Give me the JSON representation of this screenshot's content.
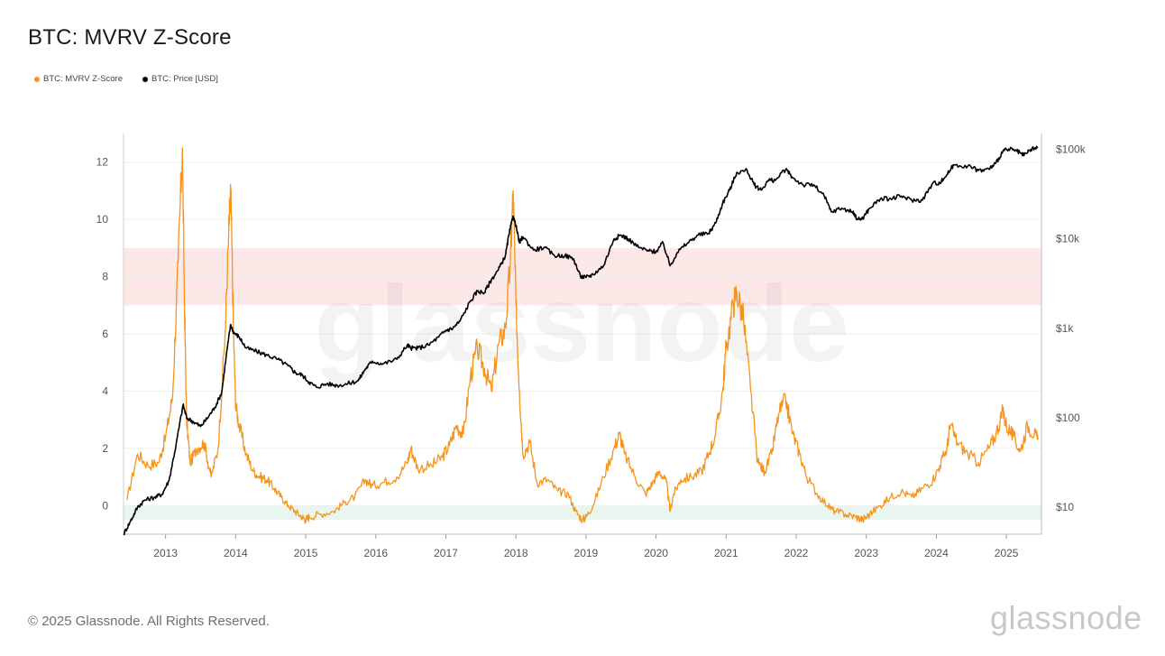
{
  "header": {
    "title": "BTC: MVRV Z-Score"
  },
  "legend": [
    {
      "label": "BTC: MVRV Z-Score",
      "color": "#f7931a"
    },
    {
      "label": "BTC: Price [USD]",
      "color": "#000000"
    }
  ],
  "footer": {
    "copyright": "© 2025 Glassnode. All Rights Reserved.",
    "brand": "glassnode"
  },
  "watermark": "glassnode",
  "chart_data": {
    "type": "line",
    "title": "BTC: MVRV Z-Score",
    "x_range": [
      2012.4,
      2025.5
    ],
    "x_ticks": [
      {
        "value": 2013,
        "label": "2013"
      },
      {
        "value": 2014,
        "label": "2014"
      },
      {
        "value": 2015,
        "label": "2015"
      },
      {
        "value": 2016,
        "label": "2016"
      },
      {
        "value": 2017,
        "label": "2017"
      },
      {
        "value": 2018,
        "label": "2018"
      },
      {
        "value": 2019,
        "label": "2019"
      },
      {
        "value": 2020,
        "label": "2020"
      },
      {
        "value": 2021,
        "label": "2021"
      },
      {
        "value": 2022,
        "label": "2022"
      },
      {
        "value": 2023,
        "label": "2023"
      },
      {
        "value": 2024,
        "label": "2024"
      },
      {
        "value": 2025,
        "label": "2025"
      }
    ],
    "y_left": {
      "range": [
        -1,
        13
      ],
      "ticks": [
        0,
        2,
        4,
        6,
        8,
        10,
        12
      ]
    },
    "y_right": {
      "scale": "log",
      "range": [
        5,
        150000
      ],
      "ticks": [
        {
          "value": 10,
          "label": "$10"
        },
        {
          "value": 100,
          "label": "$100"
        },
        {
          "value": 1000,
          "label": "$1k"
        },
        {
          "value": 10000,
          "label": "$10k"
        },
        {
          "value": 100000,
          "label": "$100k"
        }
      ]
    },
    "bands": [
      {
        "from": 7,
        "to": 9,
        "color": "#fde8e8"
      },
      {
        "from": -0.5,
        "to": 0,
        "color": "#e8f6ef"
      }
    ],
    "grid": true,
    "series": [
      {
        "name": "BTC: MVRV Z-Score",
        "color": "#f7931a",
        "axis": "left",
        "x": [
          2012.45,
          2012.6,
          2012.75,
          2012.9,
          2013.0,
          2013.1,
          2013.18,
          2013.24,
          2013.27,
          2013.3,
          2013.35,
          2013.45,
          2013.55,
          2013.65,
          2013.75,
          2013.85,
          2013.9,
          2013.93,
          2013.97,
          2014.0,
          2014.05,
          2014.15,
          2014.25,
          2014.35,
          2014.45,
          2014.55,
          2014.65,
          2014.75,
          2014.85,
          2014.95,
          2015.0,
          2015.05,
          2015.2,
          2015.4,
          2015.55,
          2015.7,
          2015.85,
          2015.95,
          2016.1,
          2016.3,
          2016.45,
          2016.5,
          2016.6,
          2016.8,
          2016.95,
          2017.05,
          2017.15,
          2017.25,
          2017.35,
          2017.45,
          2017.55,
          2017.65,
          2017.75,
          2017.85,
          2017.92,
          2017.96,
          2018.0,
          2018.05,
          2018.1,
          2018.2,
          2018.3,
          2018.45,
          2018.6,
          2018.75,
          2018.85,
          2018.95,
          2019.0,
          2019.1,
          2019.25,
          2019.4,
          2019.48,
          2019.55,
          2019.7,
          2019.85,
          2019.95,
          2020.05,
          2020.15,
          2020.2,
          2020.25,
          2020.35,
          2020.5,
          2020.65,
          2020.75,
          2020.85,
          2020.95,
          2021.0,
          2021.1,
          2021.15,
          2021.25,
          2021.35,
          2021.45,
          2021.55,
          2021.65,
          2021.75,
          2021.85,
          2021.95,
          2022.05,
          2022.15,
          2022.3,
          2022.45,
          2022.55,
          2022.7,
          2022.85,
          2022.95,
          2023.05,
          2023.2,
          2023.35,
          2023.5,
          2023.65,
          2023.8,
          2023.95,
          2024.05,
          2024.15,
          2024.2,
          2024.3,
          2024.45,
          2024.6,
          2024.75,
          2024.85,
          2024.95,
          2025.0,
          2025.1,
          2025.2,
          2025.3,
          2025.4,
          2025.45
        ],
        "values": [
          0.2,
          1.8,
          1.4,
          1.5,
          2.4,
          3.8,
          8.5,
          12.5,
          7.0,
          3.0,
          1.5,
          2.0,
          2.2,
          1.0,
          2.0,
          6.0,
          9.5,
          11.0,
          6.0,
          3.5,
          2.8,
          1.8,
          1.2,
          1.0,
          0.9,
          0.6,
          0.3,
          0.0,
          -0.2,
          -0.4,
          -0.5,
          -0.4,
          -0.3,
          -0.2,
          0.1,
          0.3,
          0.9,
          0.7,
          0.8,
          1.0,
          1.5,
          2.0,
          1.3,
          1.4,
          1.7,
          2.1,
          2.8,
          2.5,
          4.5,
          5.5,
          4.8,
          4.0,
          5.6,
          6.2,
          8.5,
          11.0,
          7.0,
          4.0,
          1.8,
          2.2,
          0.8,
          0.9,
          0.5,
          0.4,
          -0.2,
          -0.5,
          -0.4,
          0.0,
          1.0,
          2.0,
          2.5,
          1.8,
          1.0,
          0.4,
          0.8,
          1.2,
          0.8,
          -0.2,
          0.4,
          0.9,
          1.0,
          1.2,
          1.8,
          2.5,
          4.0,
          5.5,
          7.0,
          7.5,
          6.5,
          4.0,
          1.5,
          1.2,
          1.8,
          3.2,
          3.7,
          2.5,
          1.8,
          1.0,
          0.4,
          0.0,
          -0.2,
          -0.3,
          -0.4,
          -0.5,
          -0.3,
          0.0,
          0.3,
          0.5,
          0.3,
          0.6,
          0.9,
          1.4,
          2.0,
          2.8,
          2.2,
          1.8,
          1.5,
          2.0,
          2.5,
          3.3,
          2.8,
          2.4,
          1.9,
          2.8,
          2.5,
          2.3
        ]
      },
      {
        "name": "BTC: Price [USD]",
        "color": "#000000",
        "axis": "right",
        "x": [
          2012.4,
          2012.5,
          2012.6,
          2012.7,
          2012.85,
          2012.95,
          2013.05,
          2013.15,
          2013.25,
          2013.3,
          2013.4,
          2013.5,
          2013.6,
          2013.7,
          2013.8,
          2013.88,
          2013.93,
          2013.97,
          2014.05,
          2014.15,
          2014.3,
          2014.45,
          2014.6,
          2014.75,
          2014.85,
          2014.95,
          2015.05,
          2015.15,
          2015.3,
          2015.45,
          2015.6,
          2015.75,
          2015.85,
          2015.95,
          2016.1,
          2016.3,
          2016.45,
          2016.5,
          2016.6,
          2016.75,
          2016.9,
          2017.0,
          2017.1,
          2017.2,
          2017.35,
          2017.45,
          2017.55,
          2017.65,
          2017.75,
          2017.85,
          2017.9,
          2017.96,
          2018.0,
          2018.05,
          2018.1,
          2018.25,
          2018.4,
          2018.55,
          2018.7,
          2018.82,
          2018.92,
          2019.0,
          2019.1,
          2019.25,
          2019.4,
          2019.5,
          2019.6,
          2019.75,
          2019.9,
          2020.0,
          2020.1,
          2020.2,
          2020.3,
          2020.45,
          2020.6,
          2020.75,
          2020.85,
          2020.95,
          2021.05,
          2021.15,
          2021.3,
          2021.4,
          2021.5,
          2021.6,
          2021.7,
          2021.85,
          2021.95,
          2022.1,
          2022.25,
          2022.4,
          2022.5,
          2022.65,
          2022.8,
          2022.88,
          2022.95,
          2023.05,
          2023.2,
          2023.35,
          2023.5,
          2023.65,
          2023.8,
          2023.95,
          2024.05,
          2024.15,
          2024.25,
          2024.45,
          2024.6,
          2024.75,
          2024.85,
          2024.95,
          2025.05,
          2025.15,
          2025.25,
          2025.35,
          2025.45
        ],
        "values": [
          5,
          7,
          10,
          12,
          13,
          14,
          20,
          50,
          140,
          100,
          90,
          80,
          100,
          130,
          190,
          600,
          1100,
          900,
          800,
          600,
          550,
          500,
          450,
          380,
          320,
          300,
          250,
          220,
          240,
          230,
          240,
          260,
          350,
          430,
          400,
          450,
          650,
          600,
          600,
          650,
          800,
          950,
          1000,
          1200,
          2000,
          2600,
          2500,
          3500,
          4500,
          6500,
          11000,
          18000,
          14000,
          9000,
          10500,
          7500,
          8000,
          6500,
          6500,
          6000,
          3800,
          3700,
          4000,
          5000,
          10000,
          11000,
          10000,
          8000,
          7300,
          7200,
          9000,
          5000,
          7000,
          9000,
          11000,
          11500,
          15000,
          25000,
          35000,
          55000,
          58000,
          40000,
          35000,
          45000,
          45000,
          60000,
          48000,
          40000,
          40000,
          30000,
          20000,
          22000,
          20000,
          16500,
          17000,
          22000,
          28000,
          28000,
          30000,
          27000,
          27000,
          42000,
          42000,
          52000,
          67000,
          65000,
          58000,
          60000,
          70000,
          96000,
          100000,
          95000,
          85000,
          100000,
          104000
        ]
      }
    ]
  }
}
